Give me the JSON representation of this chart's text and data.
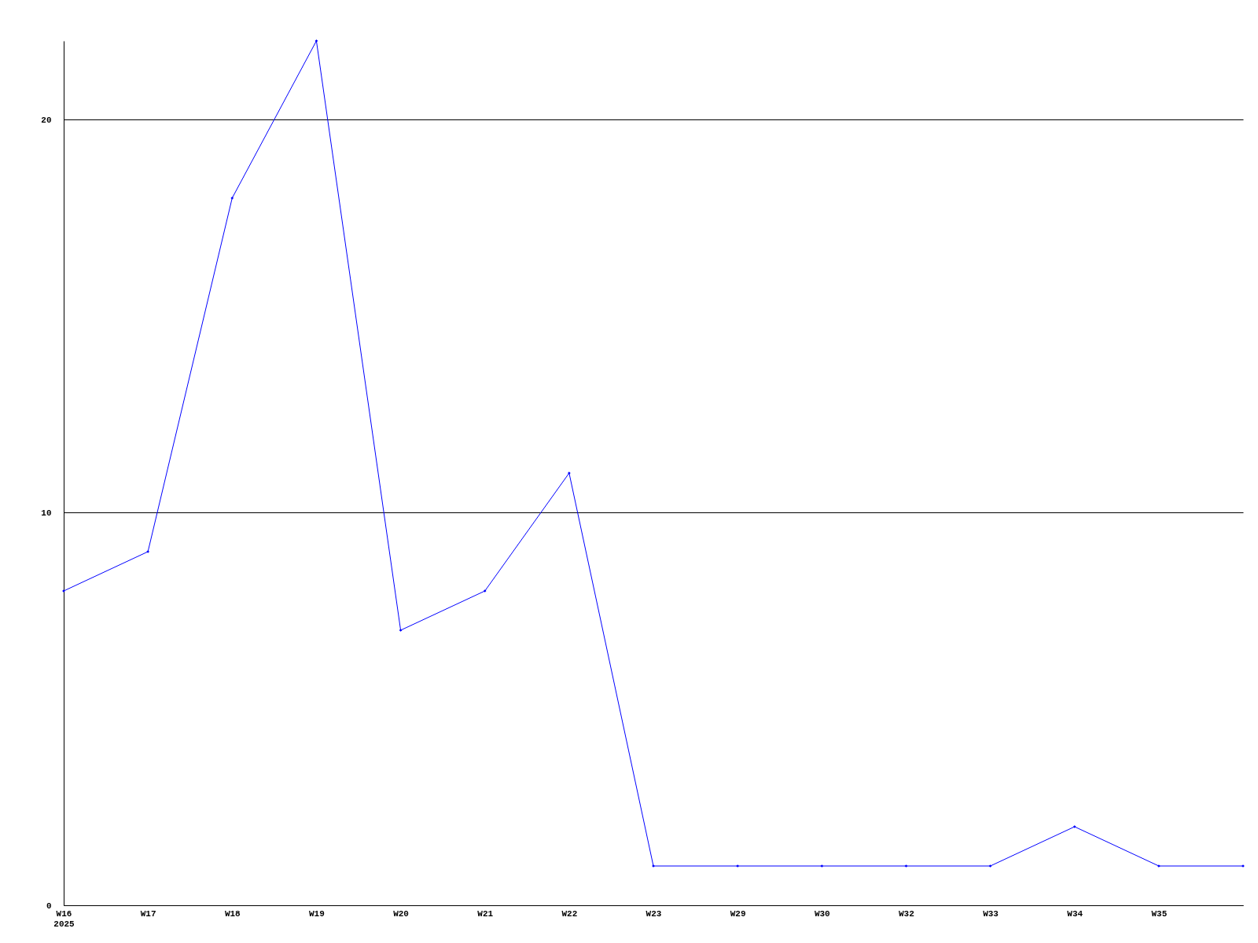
{
  "chart_data": {
    "type": "line",
    "categories": [
      "W16\n2025",
      "W17",
      "W18",
      "W19",
      "W20",
      "W21",
      "W22",
      "W23",
      "W29",
      "W30",
      "W32",
      "W33",
      "W34",
      "W35",
      null
    ],
    "series": [
      {
        "color": "#0000ff",
        "values": [
          8,
          9,
          18,
          22,
          7,
          8,
          11,
          1,
          1,
          1,
          1,
          1,
          2,
          1,
          1
        ]
      }
    ],
    "ylim": [
      0,
      22
    ],
    "yticks": [
      0,
      10,
      20
    ],
    "grid": "y",
    "marker": "diamond",
    "line_style": "solid"
  }
}
